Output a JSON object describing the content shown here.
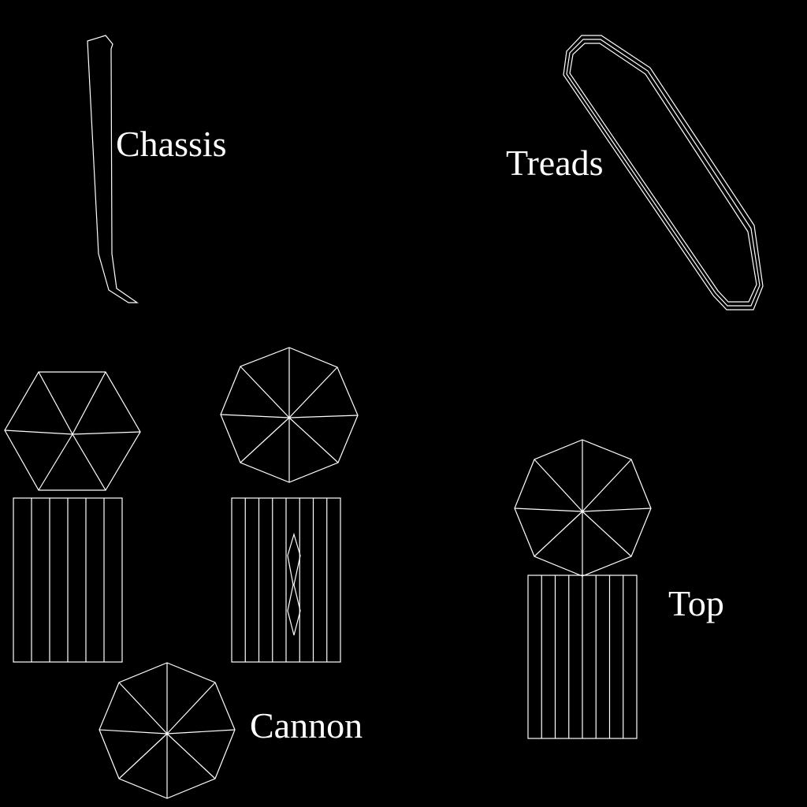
{
  "labels": {
    "chassis": "Chassis",
    "treads": "Treads",
    "cannon": "Cannon",
    "top": "Top"
  },
  "colors": {
    "background": "#000000",
    "stroke": "#ffffff",
    "text": "#ffffff"
  }
}
